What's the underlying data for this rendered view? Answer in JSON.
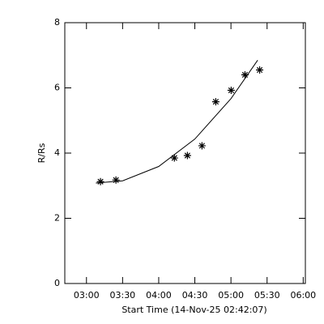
{
  "chart_data": {
    "type": "scatter",
    "xlabel": "Start Time (14-Nov-25 02:42:07)",
    "ylabel": "R/Rs",
    "xlim": [
      2.7,
      6.03
    ],
    "xticks": [
      {
        "value": 3.0,
        "label": "03:00"
      },
      {
        "value": 3.5,
        "label": "03:30"
      },
      {
        "value": 4.0,
        "label": "04:00"
      },
      {
        "value": 4.5,
        "label": "04:30"
      },
      {
        "value": 5.0,
        "label": "05:00"
      },
      {
        "value": 5.5,
        "label": "05:30"
      },
      {
        "value": 6.0,
        "label": "06:00"
      }
    ],
    "ylim": [
      0,
      8
    ],
    "yticks": [
      0,
      2,
      4,
      6,
      8
    ],
    "series": [
      {
        "mark": "star",
        "color": "#000000",
        "x": [
          3.194,
          3.408,
          4.217,
          4.397,
          4.599,
          4.79,
          5.003,
          5.194,
          5.397
        ],
        "values": [
          3.125,
          3.175,
          3.85,
          3.925,
          4.225,
          5.575,
          5.925,
          6.4,
          6.55
        ]
      },
      {
        "mark": "line",
        "color": "#000000",
        "x": [
          3.13,
          3.5,
          4.0,
          4.5,
          5.0,
          5.37
        ],
        "values": [
          3.08,
          3.15,
          3.59,
          4.43,
          5.67,
          6.85
        ]
      }
    ]
  }
}
